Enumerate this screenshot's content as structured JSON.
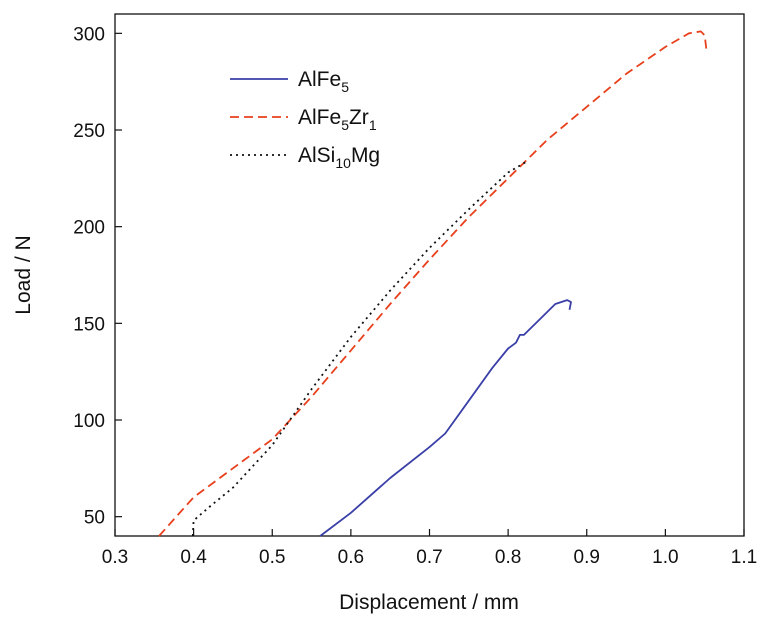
{
  "chart_data": {
    "type": "line",
    "xlabel": "Displacement / mm",
    "ylabel": "Load / N",
    "xlim": [
      0.3,
      1.1
    ],
    "ylim": [
      40,
      310
    ],
    "xticks": [
      "0.3",
      "0.4",
      "0.5",
      "0.6",
      "0.7",
      "0.8",
      "0.9",
      "1.0",
      "1.1"
    ],
    "xtick_values": [
      0.3,
      0.4,
      0.5,
      0.6,
      0.7,
      0.8,
      0.9,
      1.0,
      1.1
    ],
    "yticks": [
      "50",
      "100",
      "150",
      "200",
      "250",
      "300"
    ],
    "ytick_values": [
      50,
      100,
      150,
      200,
      250,
      300
    ],
    "grid": false,
    "legend_position": "top-left",
    "series": [
      {
        "name": "AlFe5",
        "legend": {
          "base": "AlFe",
          "sub": "5",
          "mid": "",
          "sub2": "",
          "tail": ""
        },
        "color": "#3a3fa8",
        "dash": "solid",
        "x": [
          0.561,
          0.6,
          0.65,
          0.7,
          0.72,
          0.75,
          0.78,
          0.8,
          0.81,
          0.815,
          0.82,
          0.84,
          0.86,
          0.875,
          0.88,
          0.878
        ],
        "y": [
          40,
          52,
          70,
          86,
          93,
          110,
          127,
          137,
          140,
          144,
          144,
          152,
          160,
          162,
          161,
          157
        ]
      },
      {
        "name": "AlFe5Zr1",
        "legend": {
          "base": "AlFe",
          "sub": "5",
          "mid": "Zr",
          "sub2": "1",
          "tail": ""
        },
        "color": "#e8401c",
        "dash": "dashed",
        "x": [
          0.356,
          0.4,
          0.45,
          0.5,
          0.55,
          0.6,
          0.65,
          0.7,
          0.75,
          0.8,
          0.85,
          0.9,
          0.95,
          1.0,
          1.03,
          1.045,
          1.05,
          1.052
        ],
        "y": [
          40,
          60,
          75,
          90,
          112,
          136,
          160,
          183,
          205,
          225,
          245,
          262,
          279,
          293,
          300,
          301,
          299,
          292
        ]
      },
      {
        "name": "AlSi10Mg",
        "legend": {
          "base": "AlSi",
          "sub": "10",
          "mid": "Mg",
          "sub2": "",
          "tail": ""
        },
        "color": "#111111",
        "dash": "dotted",
        "x": [
          0.399,
          0.4,
          0.42,
          0.45,
          0.5,
          0.55,
          0.6,
          0.65,
          0.7,
          0.75,
          0.8,
          0.825
        ],
        "y": [
          40,
          48,
          55,
          65,
          87,
          116,
          143,
          167,
          189,
          209,
          228,
          234
        ]
      }
    ]
  }
}
